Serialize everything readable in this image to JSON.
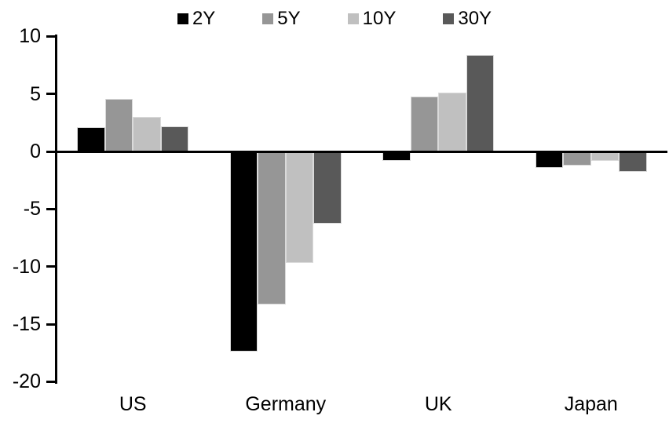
{
  "chart_data": {
    "type": "bar",
    "title": "",
    "xlabel": "",
    "ylabel": "",
    "categories": [
      "US",
      "Germany",
      "UK",
      "Japan"
    ],
    "series": [
      {
        "name": "2Y",
        "color": "#000000",
        "values": [
          2.1,
          -17.4,
          -0.8,
          -1.4
        ]
      },
      {
        "name": "5Y",
        "color": "#969696",
        "values": [
          4.6,
          -13.3,
          4.8,
          -1.2
        ]
      },
      {
        "name": "10Y",
        "color": "#C0C0C0",
        "values": [
          3.0,
          -9.7,
          5.1,
          -0.8
        ]
      },
      {
        "name": "30Y",
        "color": "#595959",
        "values": [
          2.2,
          -6.3,
          8.4,
          -1.8
        ]
      }
    ],
    "ylim": [
      -20,
      10
    ],
    "yticks": [
      10,
      5,
      0,
      -5,
      -10,
      -15,
      -20
    ],
    "grid": false,
    "legend_position": "top-center",
    "axis_color": "#000000",
    "background_color": "#FFFFFF",
    "bar_border_color": "#DADADA"
  }
}
